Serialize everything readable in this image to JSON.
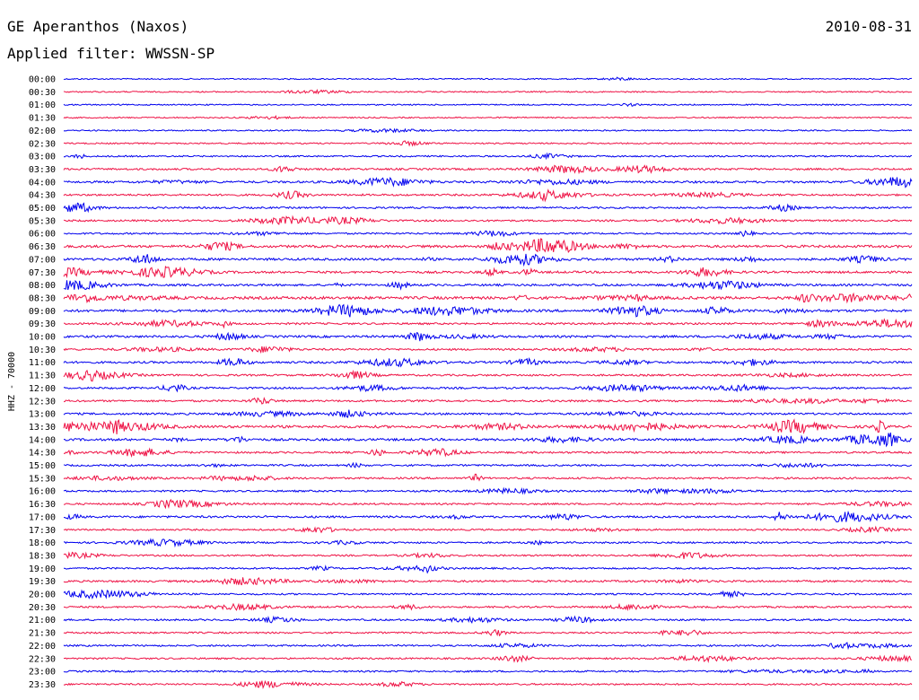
{
  "header": {
    "station": "GE Aperanthos (Naxos)",
    "date": "2010-08-31",
    "filter": "Applied filter: WWSSN-SP"
  },
  "chart_data": {
    "type": "line",
    "title": "GE Aperanthos (Naxos)",
    "subtitle": "Applied filter: WWSSN-SP",
    "ylabel": "HHZ - 70000",
    "xlabel": "",
    "colors": [
      "#0000ee",
      "#ee1144"
    ],
    "rows": [
      {
        "label": "00:00",
        "activity": 0.05
      },
      {
        "label": "00:30",
        "activity": 0.08
      },
      {
        "label": "01:00",
        "activity": 0.06
      },
      {
        "label": "01:30",
        "activity": 0.06
      },
      {
        "label": "02:00",
        "activity": 0.07
      },
      {
        "label": "02:30",
        "activity": 0.12
      },
      {
        "label": "03:00",
        "activity": 0.18
      },
      {
        "label": "03:30",
        "activity": 0.35
      },
      {
        "label": "04:00",
        "activity": 0.45
      },
      {
        "label": "04:30",
        "activity": 0.35
      },
      {
        "label": "05:00",
        "activity": 0.3
      },
      {
        "label": "05:30",
        "activity": 0.3
      },
      {
        "label": "06:00",
        "activity": 0.25
      },
      {
        "label": "06:30",
        "activity": 0.6
      },
      {
        "label": "07:00",
        "activity": 0.55
      },
      {
        "label": "07:30",
        "activity": 0.5
      },
      {
        "label": "08:00",
        "activity": 0.45
      },
      {
        "label": "08:30",
        "activity": 0.75
      },
      {
        "label": "09:00",
        "activity": 0.6
      },
      {
        "label": "09:30",
        "activity": 0.35
      },
      {
        "label": "10:00",
        "activity": 0.5
      },
      {
        "label": "10:30",
        "activity": 0.35
      },
      {
        "label": "11:00",
        "activity": 0.45
      },
      {
        "label": "11:30",
        "activity": 0.35
      },
      {
        "label": "12:00",
        "activity": 0.35
      },
      {
        "label": "12:30",
        "activity": 0.35
      },
      {
        "label": "13:00",
        "activity": 0.4
      },
      {
        "label": "13:30",
        "activity": 0.65
      },
      {
        "label": "14:00",
        "activity": 0.55
      },
      {
        "label": "14:30",
        "activity": 0.35
      },
      {
        "label": "15:00",
        "activity": 0.3
      },
      {
        "label": "15:30",
        "activity": 0.35
      },
      {
        "label": "16:00",
        "activity": 0.3
      },
      {
        "label": "16:30",
        "activity": 0.3
      },
      {
        "label": "17:00",
        "activity": 0.45
      },
      {
        "label": "17:30",
        "activity": 0.25
      },
      {
        "label": "18:00",
        "activity": 0.3
      },
      {
        "label": "18:30",
        "activity": 0.25
      },
      {
        "label": "19:00",
        "activity": 0.25
      },
      {
        "label": "19:30",
        "activity": 0.4
      },
      {
        "label": "20:00",
        "activity": 0.25
      },
      {
        "label": "20:30",
        "activity": 0.3
      },
      {
        "label": "21:00",
        "activity": 0.3
      },
      {
        "label": "21:30",
        "activity": 0.25
      },
      {
        "label": "22:00",
        "activity": 0.25
      },
      {
        "label": "22:30",
        "activity": 0.25
      },
      {
        "label": "23:00",
        "activity": 0.25
      },
      {
        "label": "23:30",
        "activity": 0.25
      }
    ]
  }
}
